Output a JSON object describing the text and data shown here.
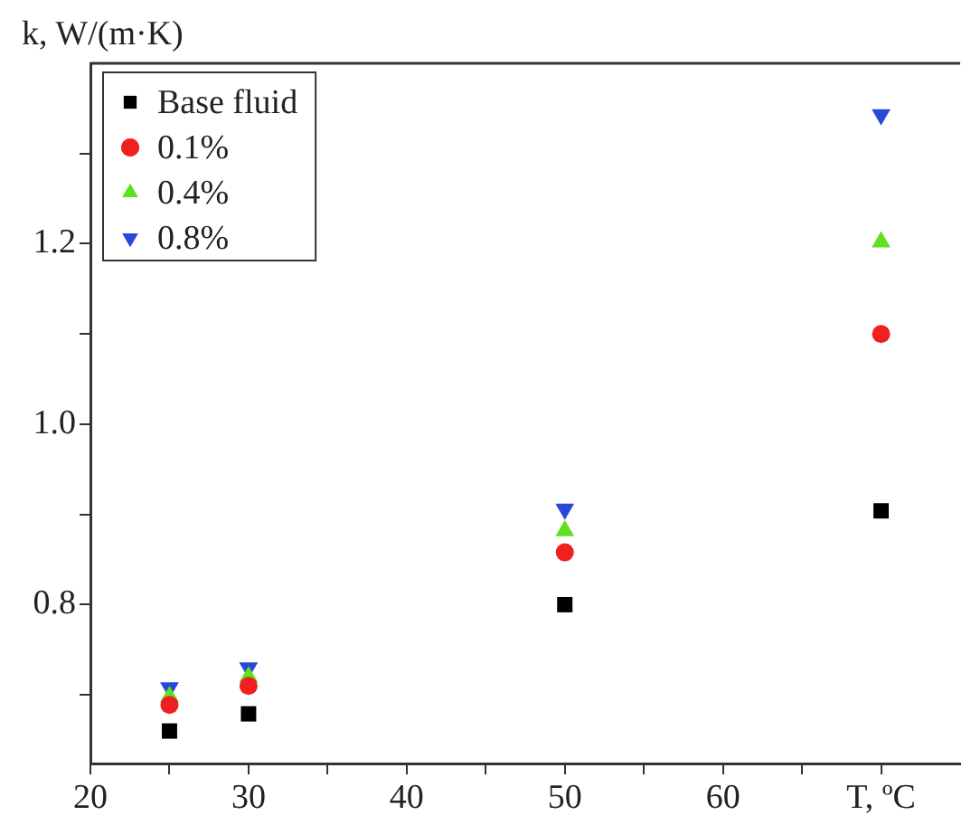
{
  "chart_data": {
    "type": "scatter",
    "ylabel": "k, W/(m·K)",
    "legend": "top left",
    "grid": false,
    "xlim": [
      20,
      75
    ],
    "xticks": [
      20,
      {
        "value": 25,
        "label": null
      },
      30,
      {
        "value": 35,
        "label": null
      },
      40,
      {
        "value": 45,
        "label": null
      },
      50,
      {
        "value": 55,
        "label": null
      },
      60,
      {
        "value": 65,
        "label": null
      },
      {
        "value": 70,
        "label": "T, ºC"
      }
    ],
    "ylim": [
      0.624,
      1.4
    ],
    "yticks": [
      {
        "value": 0.7,
        "label": null
      },
      0.8,
      {
        "value": 0.9,
        "label": null
      },
      {
        "value": 1.0,
        "label": "1.0"
      },
      {
        "value": 1.1,
        "label": null
      },
      1.2,
      {
        "value": 1.3,
        "label": null
      }
    ],
    "x": [
      25,
      30,
      50,
      70
    ],
    "series": [
      {
        "name": "Base fluid",
        "color": "#000000",
        "marker": "square",
        "values": [
          0.66,
          0.679,
          0.8,
          0.904
        ]
      },
      {
        "name": "0.1%",
        "color": "#f02020",
        "marker": "circle",
        "values": [
          0.689,
          0.71,
          0.858,
          1.1
        ]
      },
      {
        "name": "0.4%",
        "color": "#60e020",
        "marker": "triangle",
        "values": [
          0.698,
          0.72,
          0.882,
          1.202
        ]
      },
      {
        "name": "0.8%",
        "color": "#2848d8",
        "marker": "triangle_down",
        "values": [
          0.708,
          0.73,
          0.906,
          1.343
        ]
      }
    ]
  }
}
